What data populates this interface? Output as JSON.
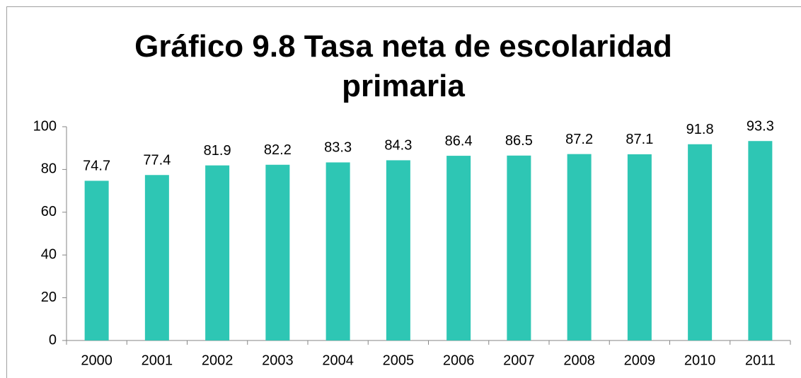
{
  "chart_data": {
    "type": "bar",
    "title": "Gráfico 9.8 Tasa neta de escolaridad primaria",
    "categories": [
      "2000",
      "2001",
      "2002",
      "2003",
      "2004",
      "2005",
      "2006",
      "2007",
      "2008",
      "2009",
      "2010",
      "2011"
    ],
    "values": [
      74.7,
      77.4,
      81.9,
      82.2,
      83.3,
      84.3,
      86.4,
      86.5,
      87.2,
      87.1,
      91.8,
      93.3
    ],
    "color": "#2ec6b4",
    "ylim": [
      0,
      100
    ],
    "yticks": [
      0,
      20,
      40,
      60,
      80,
      100
    ],
    "grid": false
  }
}
